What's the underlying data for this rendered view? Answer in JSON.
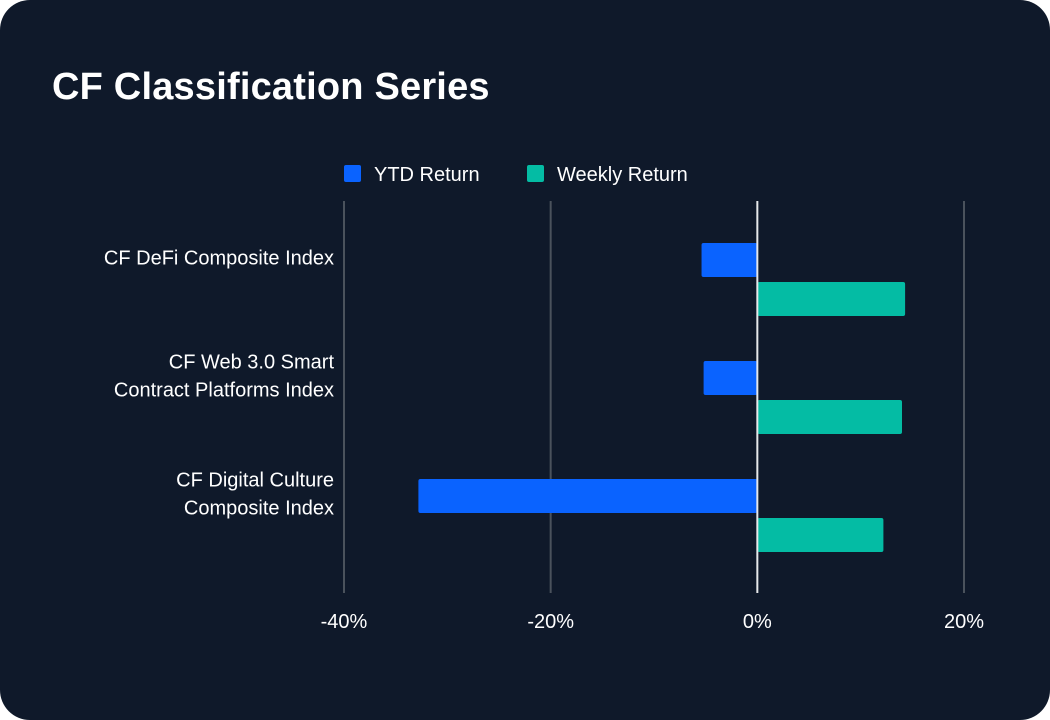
{
  "header": {
    "title": "CF Classification Series"
  },
  "colors": {
    "background": "#0f192a",
    "ytd": "#0a63ff",
    "weekly": "#04bca4",
    "gridline": "#4a525c",
    "zeroline": "#e6e8ea",
    "text": "#ffffff"
  },
  "chart_data": {
    "type": "bar",
    "orientation": "horizontal",
    "title": "CF Classification Series",
    "categories": [
      [
        "CF DeFi Composite Index"
      ],
      [
        "CF Web 3.0 Smart",
        "Contract Platforms Index"
      ],
      [
        "CF Digital Culture",
        "Composite Index"
      ]
    ],
    "series": [
      {
        "name": "YTD Return",
        "color": "#0a63ff",
        "values": [
          -5.4,
          -5.2,
          -32.8
        ]
      },
      {
        "name": "Weekly Return",
        "color": "#04bca4",
        "values": [
          14.3,
          14.0,
          12.2
        ]
      }
    ],
    "xlim": [
      -40,
      20
    ],
    "xticks": [
      -40,
      -20,
      0,
      20
    ],
    "xtick_labels": [
      "-40%",
      "-20%",
      "0%",
      "20%"
    ],
    "legend": "top-center",
    "grid": true
  }
}
